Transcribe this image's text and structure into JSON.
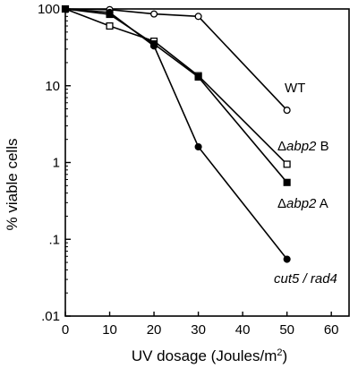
{
  "chart_data": {
    "type": "line",
    "xlabel": {
      "main": "UV dosage (Joules/m",
      "sup": "2",
      "end": ")"
    },
    "ylabel": "% viable cells",
    "x_ticks": [
      0,
      10,
      20,
      30,
      40,
      50,
      60
    ],
    "x_tick_labels": [
      "0",
      "10",
      "20",
      "30",
      "40",
      "50",
      "60"
    ],
    "xlim": [
      0,
      64
    ],
    "y_scale": "log",
    "y_ticks": [
      0.01,
      0.1,
      1,
      10,
      100
    ],
    "y_tick_labels": [
      ".01",
      ".1",
      "1",
      "10",
      "100"
    ],
    "ylim": [
      0.01,
      100
    ],
    "grid": false,
    "series": [
      {
        "name": "WT",
        "label_parts": [
          {
            "text": "WT",
            "italic": false
          }
        ],
        "marker": "circle",
        "marker_fill": "#ffffff",
        "x": [
          0,
          10,
          20,
          30,
          50
        ],
        "y": [
          100,
          98,
          86,
          80,
          4.8
        ]
      },
      {
        "name": "Δabp2 B",
        "label_parts": [
          {
            "text": "Δ",
            "italic": false
          },
          {
            "text": "abp2",
            "italic": true
          },
          {
            "text": " B",
            "italic": false
          }
        ],
        "marker": "square",
        "marker_fill": "#ffffff",
        "x": [
          0,
          10,
          20,
          30,
          50
        ],
        "y": [
          100,
          60,
          38,
          13.5,
          0.95
        ]
      },
      {
        "name": "Δabp2 A",
        "label_parts": [
          {
            "text": "Δ",
            "italic": false
          },
          {
            "text": "abp2",
            "italic": true
          },
          {
            "text": " A",
            "italic": false
          }
        ],
        "marker": "square",
        "marker_fill": "#000000",
        "x": [
          0,
          10,
          20,
          30,
          50
        ],
        "y": [
          100,
          85,
          35,
          13,
          0.55
        ]
      },
      {
        "name": "cut5 / rad4",
        "label_parts": [
          {
            "text": "cut5 / rad4",
            "italic": true
          }
        ],
        "marker": "circle",
        "marker_fill": "#000000",
        "x": [
          0,
          10,
          20,
          30,
          50
        ],
        "y": [
          100,
          90,
          33,
          1.6,
          0.055
        ]
      }
    ]
  }
}
